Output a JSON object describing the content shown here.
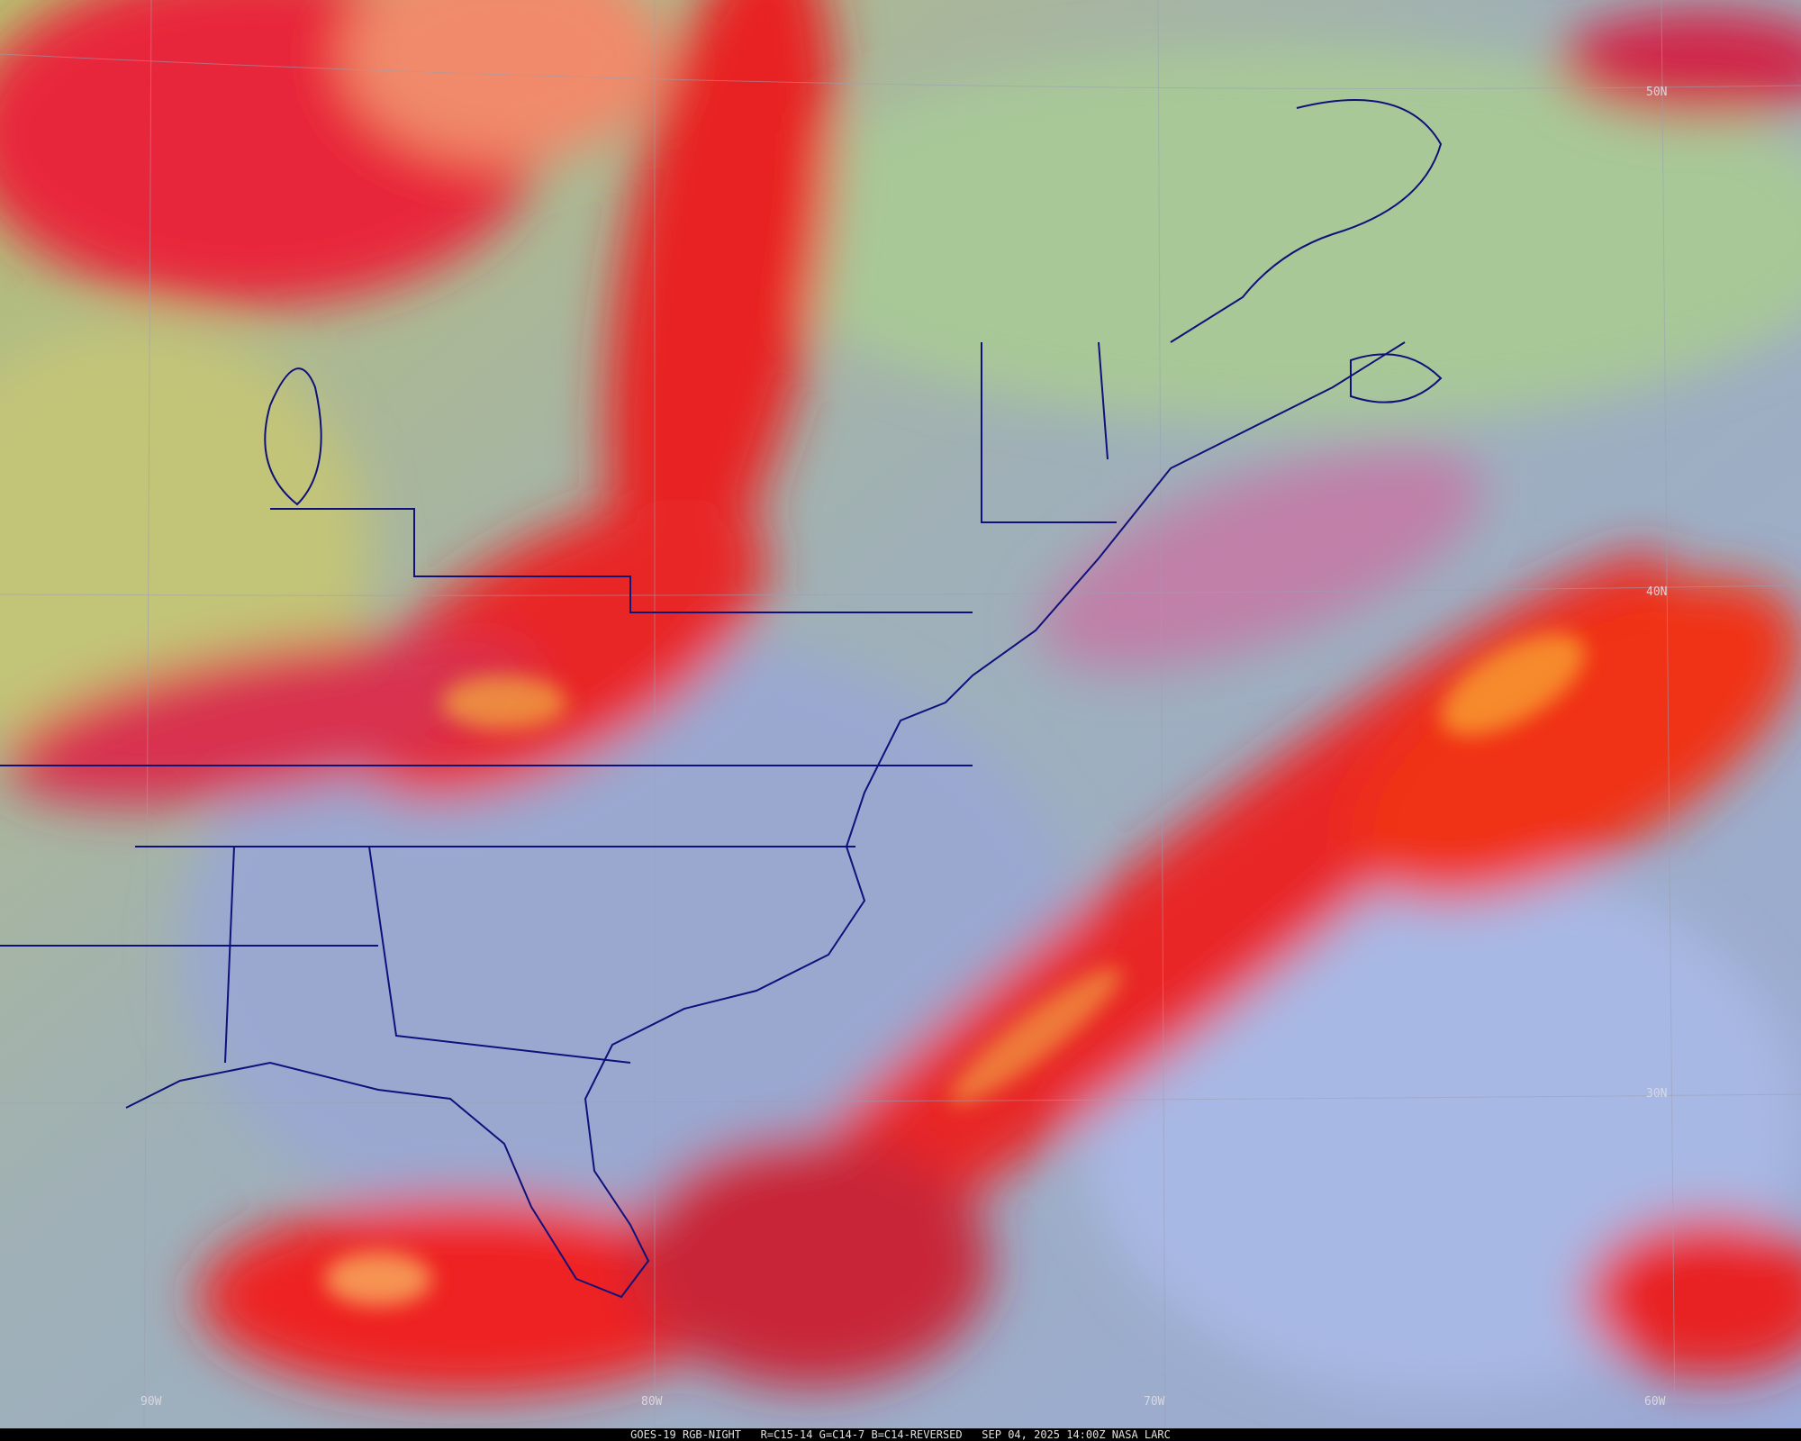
{
  "grid_labels": {
    "latitude": [
      "50N",
      "40N",
      "30N"
    ],
    "longitude": [
      "90W",
      "80W",
      "70W",
      "60W"
    ]
  },
  "footer": "GOES-19 RGB-NIGHT   R=C15-14 G=C14-7 B=C14-REVERSED   SEP 04, 2025 14:00Z NASA LARC"
}
